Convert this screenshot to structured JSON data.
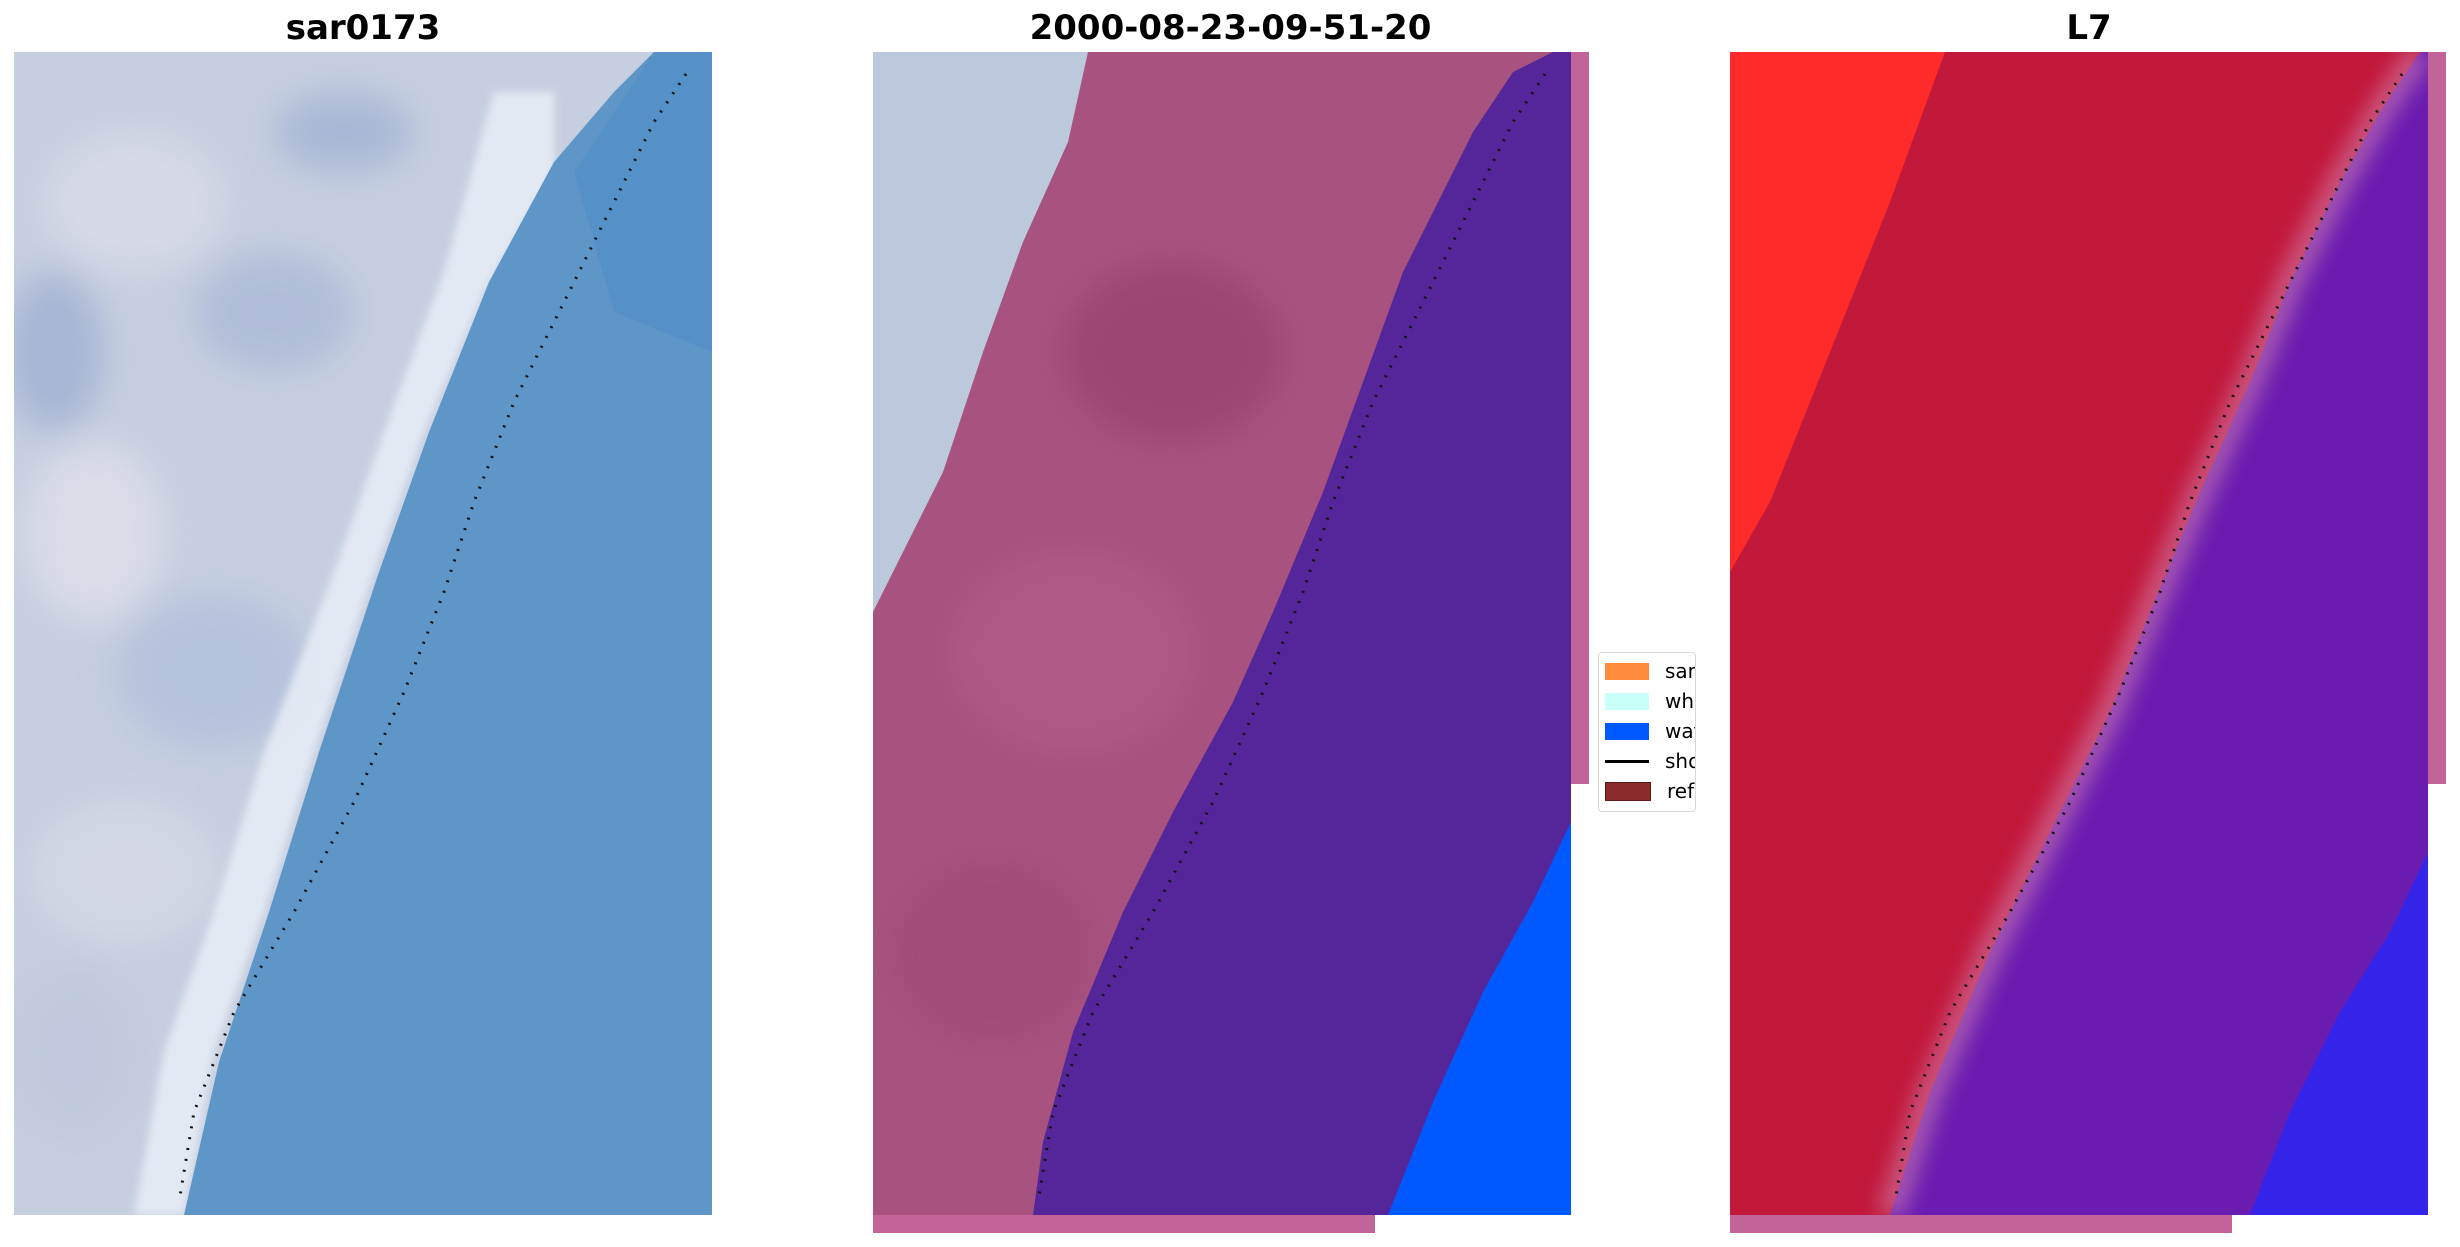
{
  "panels": [
    {
      "title": "sar0173"
    },
    {
      "title": "2000-08-23-09-51-20"
    },
    {
      "title": "L7"
    }
  ],
  "legend": {
    "items": [
      {
        "label": "sand",
        "color": "#ff8c3c"
      },
      {
        "label": "whitew",
        "color": "#c8fff8"
      },
      {
        "label": "water",
        "color": "#0059ff"
      },
      {
        "label": "shorel",
        "color": "#000000"
      },
      {
        "label": "referer",
        "color": "#8b2b2b"
      }
    ]
  },
  "colors": {
    "rgb_land": "#c6cfe0",
    "rgb_water": "#5f96c8",
    "class_land": "#a8537f",
    "class_water": "#55269a",
    "class_water_blue": "#0059ff",
    "class_edge": "#c2649a",
    "fc_land": "#c2183a",
    "fc_land_bright": "#ff2a2a",
    "fc_water": "#6a1cb0",
    "fc_water_blue": "#2f25ee"
  }
}
